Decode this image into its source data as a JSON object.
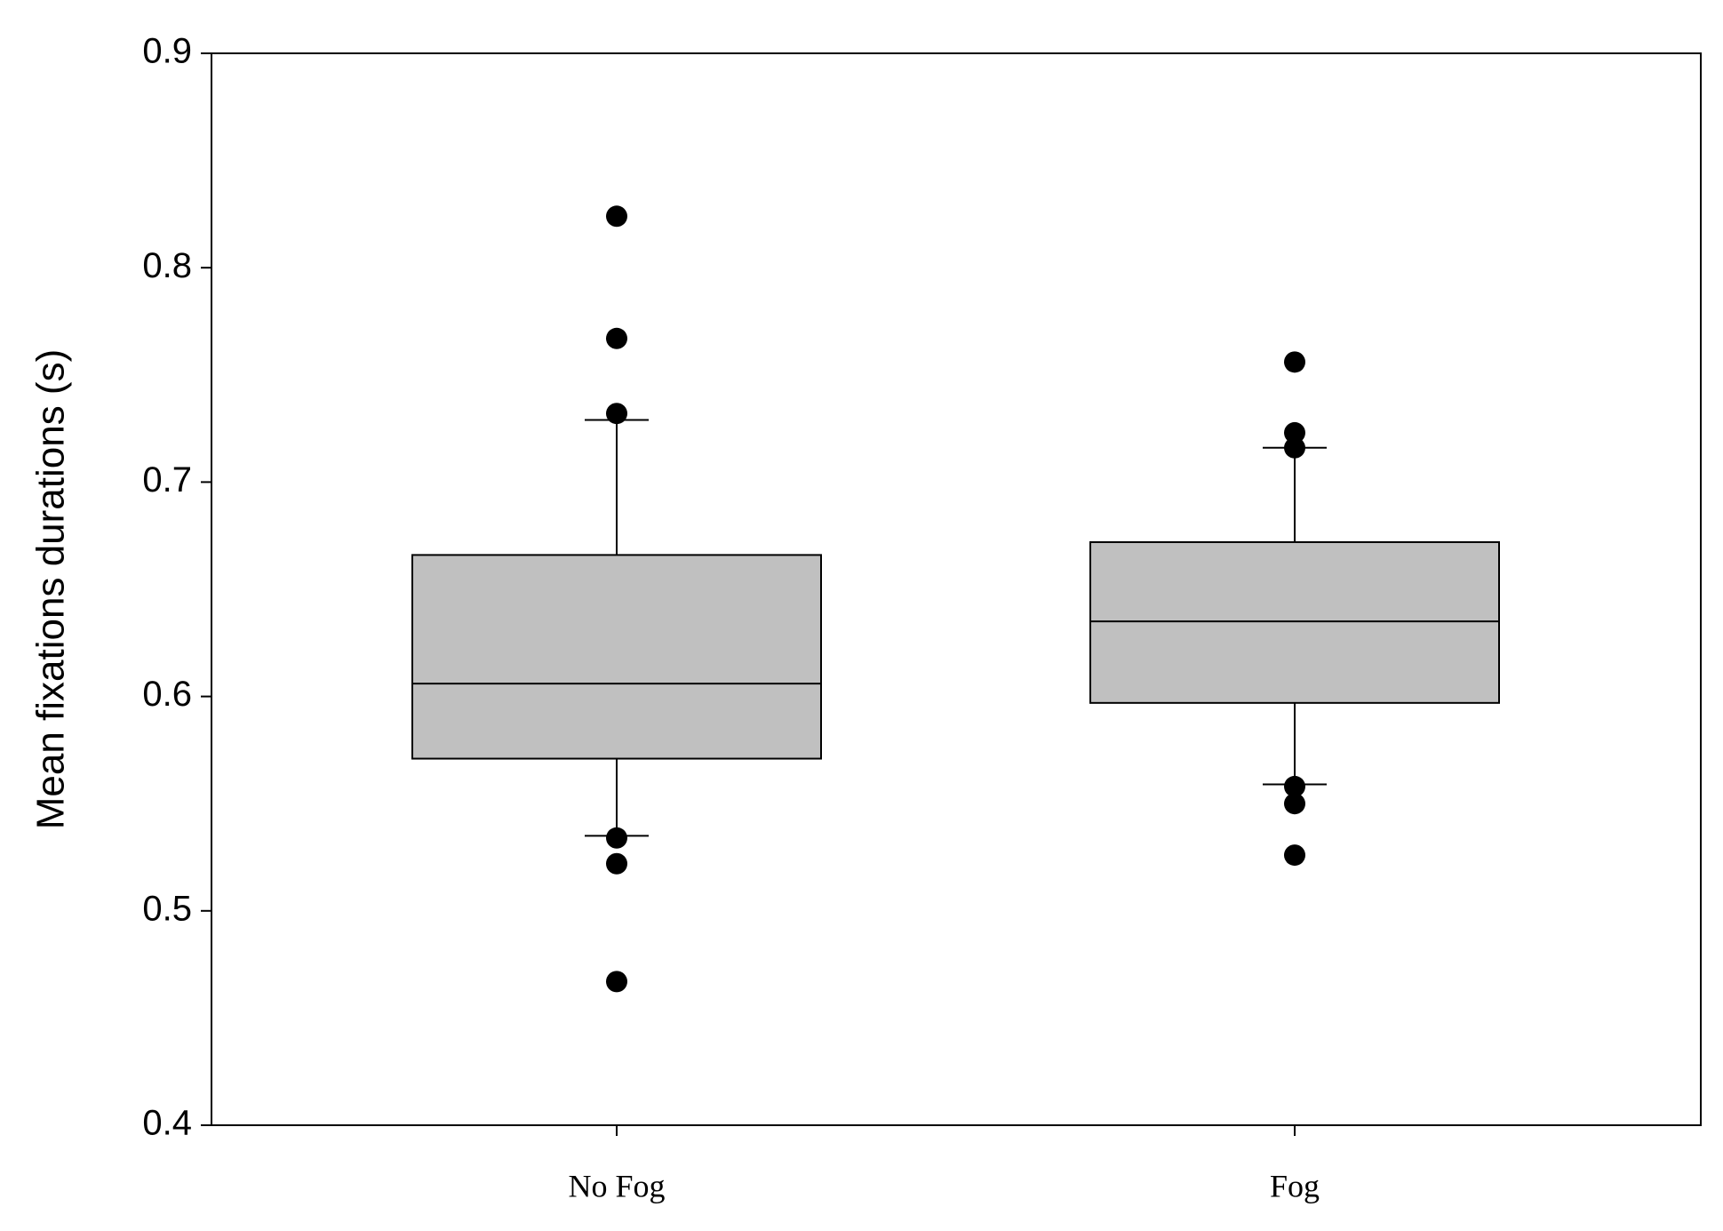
{
  "chart_data": {
    "type": "box",
    "y_label": "Mean fixations durations (s)",
    "categories": [
      "No Fog",
      "Fog"
    ],
    "color": "#c0c0c0",
    "boxes": [
      {
        "min": 0.535,
        "q1": 0.571,
        "median": 0.606,
        "q3": 0.666,
        "max": 0.729,
        "outliers": [
          0.824,
          0.767,
          0.732,
          0.534,
          0.522,
          0.467
        ]
      },
      {
        "min": 0.559,
        "q1": 0.597,
        "median": 0.635,
        "q3": 0.672,
        "max": 0.716,
        "outliers": [
          0.756,
          0.723,
          0.716,
          0.558,
          0.55,
          0.526
        ]
      }
    ],
    "ylim": [
      0.4,
      0.9
    ],
    "yticks": [
      0.4,
      0.5,
      0.6,
      0.7,
      0.8,
      0.9
    ]
  }
}
